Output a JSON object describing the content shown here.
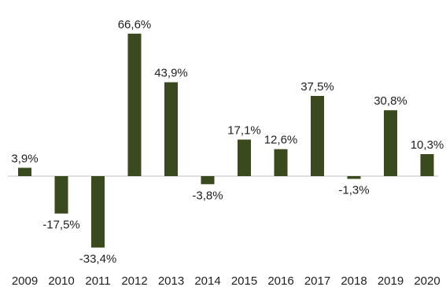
{
  "chart_data": {
    "type": "bar",
    "categories": [
      "2009",
      "2010",
      "2011",
      "2012",
      "2013",
      "2014",
      "2015",
      "2016",
      "2017",
      "2018",
      "2019",
      "2020"
    ],
    "values": [
      3.9,
      -17.5,
      -33.4,
      66.6,
      43.9,
      -3.8,
      17.1,
      12.6,
      37.5,
      -1.3,
      30.8,
      10.3
    ],
    "data_labels": [
      "3,9%",
      "-17,5%",
      "-33,4%",
      "66,6%",
      "43,9%",
      "-3,8%",
      "17,1%",
      "12,6%",
      "37,5%",
      "-1,3%",
      "30,8%",
      "10,3%"
    ],
    "title": "",
    "xlabel": "",
    "ylabel": "",
    "ylim": [
      -45,
      70
    ],
    "grid": false,
    "legend": "none",
    "colors": {
      "bar": "#3b4a1e",
      "axis": "#bfbfbf",
      "text": "#1f1f1f"
    }
  }
}
